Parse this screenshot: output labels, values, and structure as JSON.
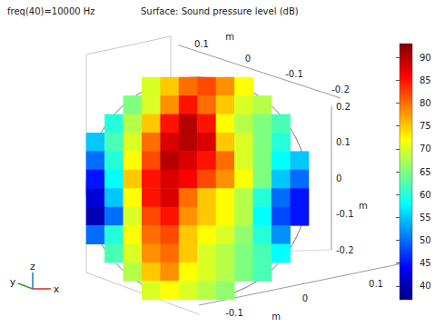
{
  "chart_data": {
    "type": "surface3d",
    "title": "Surface: Sound pressure level (dB)",
    "subtitle": "freq(40)=10000 Hz",
    "x_label": "m",
    "y_label": "m",
    "z_label": "m",
    "xlim": [
      -0.15,
      0.15
    ],
    "xticks": [
      -0.1,
      0,
      0.1
    ],
    "ylim": [
      -0.2,
      0.15
    ],
    "yticks": [
      0.1,
      0,
      -0.1,
      -0.2
    ],
    "zlim": [
      -0.2,
      0.2
    ],
    "zticks": [
      0.2,
      0.1,
      0,
      -0.1,
      -0.2
    ],
    "triad_labels": [
      "x",
      "y",
      "z"
    ],
    "colorbar": {
      "range": [
        37,
        93
      ],
      "ticks": [
        40,
        45,
        50,
        55,
        60,
        65,
        70,
        75,
        80,
        85,
        90
      ]
    },
    "surface_values": [
      [
        null,
        null,
        null,
        70,
        75,
        80,
        82,
        78,
        72,
        null,
        null,
        null
      ],
      [
        null,
        null,
        65,
        70,
        78,
        85,
        80,
        75,
        70,
        68,
        null,
        null
      ],
      [
        null,
        60,
        68,
        75,
        85,
        90,
        85,
        72,
        68,
        65,
        62,
        null
      ],
      [
        55,
        62,
        70,
        80,
        88,
        90,
        88,
        75,
        70,
        65,
        60,
        null
      ],
      [
        50,
        60,
        72,
        82,
        90,
        88,
        85,
        80,
        70,
        65,
        58,
        55
      ],
      [
        45,
        58,
        75,
        85,
        88,
        86,
        82,
        78,
        72,
        65,
        55,
        50
      ],
      [
        42,
        55,
        72,
        85,
        88,
        80,
        75,
        72,
        68,
        60,
        50,
        45
      ],
      [
        40,
        50,
        70,
        82,
        85,
        78,
        75,
        72,
        68,
        58,
        48,
        45
      ],
      [
        50,
        60,
        72,
        80,
        82,
        75,
        72,
        70,
        66,
        60,
        52,
        null
      ],
      [
        null,
        62,
        70,
        78,
        80,
        75,
        70,
        68,
        65,
        62,
        58,
        null
      ],
      [
        null,
        null,
        68,
        75,
        78,
        72,
        70,
        68,
        65,
        62,
        null,
        null
      ],
      [
        null,
        null,
        null,
        70,
        72,
        70,
        68,
        66,
        null,
        null,
        null,
        null
      ]
    ]
  }
}
